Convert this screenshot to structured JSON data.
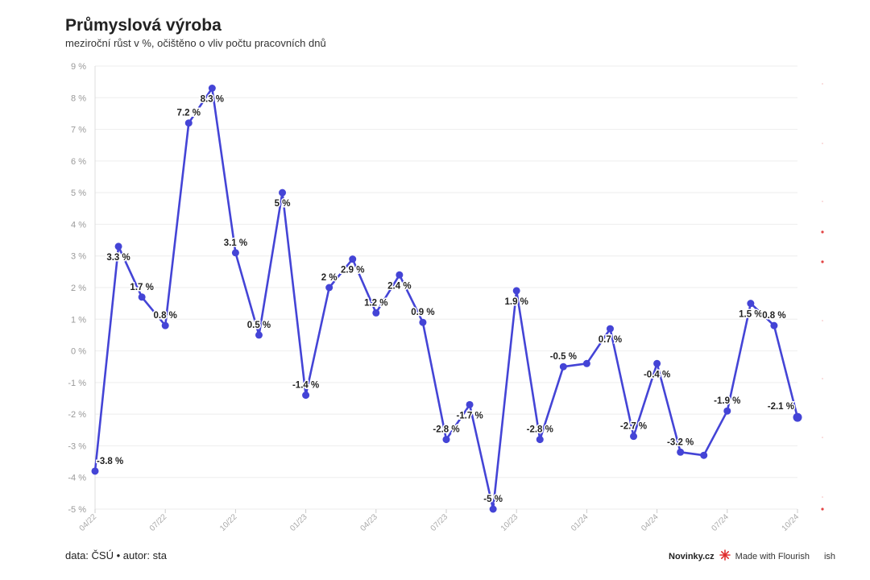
{
  "header": {
    "title": "Průmyslová výroba",
    "subtitle": "meziroční růst v %, očištěno o vliv počtu pracovních dnů"
  },
  "footer": {
    "source": "data: ČSÚ • autor: sta",
    "brand": "Novinky.cz",
    "made_with": "Made with Flourish",
    "cut_text": "ish"
  },
  "colors": {
    "line": "#4444d6",
    "grid": "#eeeeee",
    "accent": "#e03030"
  },
  "chart_data": {
    "type": "line",
    "title": "Průmyslová výroba",
    "subtitle": "meziroční růst v %, očištěno o vliv počtu pracovních dnů",
    "xlabel": "",
    "ylabel": "",
    "ylim": [
      -5,
      9
    ],
    "yticks": [
      9,
      8,
      7,
      6,
      5,
      4,
      3,
      2,
      1,
      0,
      -1,
      -2,
      -3,
      -4,
      -5
    ],
    "ytick_labels": [
      "9 %",
      "8 %",
      "7 %",
      "6 %",
      "5 %",
      "4 %",
      "3 %",
      "2 %",
      "1 %",
      "0 %",
      "-1 %",
      "-2 %",
      "-3 %",
      "-4 %",
      "-5 %"
    ],
    "x": [
      "04/22",
      "05/22",
      "06/22",
      "07/22",
      "08/22",
      "09/22",
      "10/22",
      "11/22",
      "12/22",
      "01/23",
      "02/23",
      "03/23",
      "04/23",
      "05/23",
      "06/23",
      "07/23",
      "08/23",
      "09/23",
      "10/23",
      "11/23",
      "12/23",
      "01/24",
      "02/24",
      "03/24",
      "04/24",
      "05/24",
      "06/24",
      "07/24",
      "08/24",
      "09/24",
      "10/24"
    ],
    "xtick_labels": [
      "04/22",
      "07/22",
      "10/22",
      "01/23",
      "04/23",
      "07/23",
      "10/23",
      "01/24",
      "04/24",
      "07/24",
      "10/24"
    ],
    "series": [
      {
        "values": [
          -3.8,
          3.3,
          1.7,
          0.8,
          7.2,
          8.3,
          3.1,
          0.5,
          5,
          -1.4,
          2,
          2.9,
          1.2,
          2.4,
          0.9,
          -2.8,
          -1.7,
          -5,
          1.9,
          -2.8,
          -0.5,
          -0.4,
          0.7,
          -2.7,
          -0.4,
          -3.2,
          -3.3,
          -1.9,
          1.5,
          0.8,
          -2.1
        ],
        "labels": [
          "-3.8 %",
          "3.3 %",
          "1.7 %",
          "0.8 %",
          "7.2 %",
          "8.3 %",
          "3.1 %",
          "0.5 %",
          "5 %",
          "-1.4 %",
          "2 %",
          "2.9 %",
          "1.2 %",
          "2.4 %",
          "0.9 %",
          "-2.8 %",
          "-1.7 %",
          "-5 %",
          "1.9 %",
          "-2.8 %",
          "-0.5 %",
          "",
          "0.7 %",
          "-2.7 %",
          "-0.4 %",
          "-3.2 %",
          "",
          "-1.9 %",
          "1.5 %",
          "0.8 %",
          "-2.1 %"
        ]
      }
    ],
    "grid": true,
    "legend": "none"
  }
}
